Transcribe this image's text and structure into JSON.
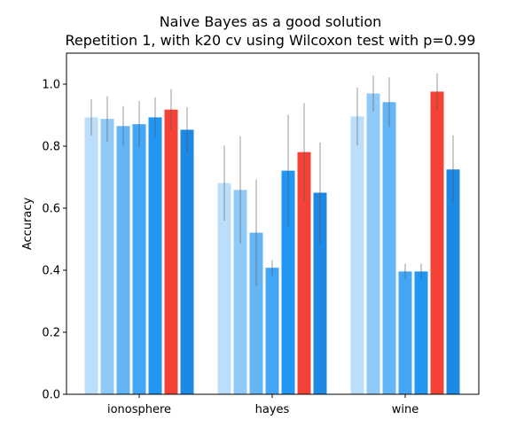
{
  "chart_data": {
    "type": "bar",
    "title": "Naive Bayes as a good solution",
    "subtitle": "Repetition 1, with k20 cv using Wilcoxon test with p=0.99",
    "xlabel": "",
    "ylabel": "Accuracy",
    "ylim": [
      0,
      1.1
    ],
    "yticks": [
      "0.0",
      "0.2",
      "0.4",
      "0.6",
      "0.8",
      "1.0"
    ],
    "grid": false,
    "categories": [
      "ionosphere",
      "hayes",
      "wine"
    ],
    "series": [
      {
        "color": "#bbdefb",
        "values": [
          0.893,
          0.681,
          0.896
        ],
        "errors": [
          0.058,
          0.121,
          0.093
        ]
      },
      {
        "color": "#90caf9",
        "values": [
          0.888,
          0.659,
          0.97
        ],
        "errors": [
          0.073,
          0.173,
          0.058
        ]
      },
      {
        "color": "#64b5f6",
        "values": [
          0.865,
          0.521,
          0.942
        ],
        "errors": [
          0.064,
          0.172,
          0.08
        ]
      },
      {
        "color": "#42a5f5",
        "values": [
          0.871,
          0.408,
          0.396
        ],
        "errors": [
          0.075,
          0.025,
          0.025
        ]
      },
      {
        "color": "#2196f3",
        "values": [
          0.893,
          0.721,
          0.396
        ],
        "errors": [
          0.065,
          0.18,
          0.025
        ]
      },
      {
        "color": "#f44336",
        "values": [
          0.918,
          0.781,
          0.976
        ],
        "errors": [
          0.066,
          0.158,
          0.059
        ]
      },
      {
        "color": "#1e88e5",
        "values": [
          0.853,
          0.65,
          0.725
        ],
        "errors": [
          0.073,
          0.162,
          0.11
        ]
      }
    ]
  }
}
